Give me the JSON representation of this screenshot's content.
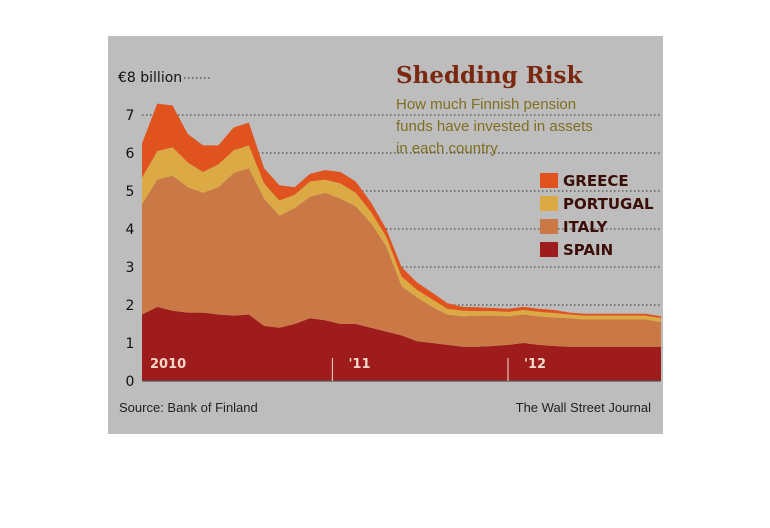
{
  "chart_data": {
    "type": "area",
    "stacked": true,
    "title": "Shedding Risk",
    "subtitle_lines": [
      "How much Finnish pension",
      "funds have invested in assets",
      "in each country"
    ],
    "unit_label": "€8 billion",
    "y_ticks": [
      "0",
      "1",
      "2",
      "3",
      "4",
      "5",
      "6",
      "7"
    ],
    "x_ticks": [
      "2010",
      "'11",
      "'12"
    ],
    "ylim": [
      0,
      8
    ],
    "grid": "dotted horizontal",
    "legend_position": "right",
    "x": [
      0,
      1,
      2,
      3,
      4,
      5,
      6,
      7,
      8,
      9,
      10,
      11,
      12,
      13,
      14,
      15,
      16,
      17,
      18,
      19,
      20,
      21,
      22,
      23,
      24,
      25,
      26,
      27,
      28,
      29,
      30,
      31,
      32,
      33,
      34
    ],
    "series": [
      {
        "name": "SPAIN",
        "color": "#9e1c1c",
        "values": [
          1.75,
          1.95,
          1.85,
          1.8,
          1.8,
          1.75,
          1.72,
          1.75,
          1.45,
          1.4,
          1.5,
          1.65,
          1.6,
          1.5,
          1.5,
          1.4,
          1.3,
          1.2,
          1.05,
          1.0,
          0.95,
          0.9,
          0.9,
          0.92,
          0.95,
          1.0,
          0.95,
          0.92,
          0.9,
          0.9,
          0.9,
          0.9,
          0.9,
          0.9,
          0.9
        ]
      },
      {
        "name": "ITALY",
        "color": "#c97846",
        "values": [
          2.9,
          3.35,
          3.55,
          3.3,
          3.15,
          3.35,
          3.75,
          3.85,
          3.35,
          2.95,
          3.05,
          3.2,
          3.35,
          3.3,
          3.1,
          2.75,
          2.25,
          1.3,
          1.15,
          0.95,
          0.8,
          0.8,
          0.82,
          0.8,
          0.75,
          0.75,
          0.75,
          0.75,
          0.75,
          0.72,
          0.72,
          0.72,
          0.72,
          0.72,
          0.65
        ]
      },
      {
        "name": "PORTUGAL",
        "color": "#dcaa45",
        "values": [
          0.7,
          0.75,
          0.75,
          0.65,
          0.55,
          0.6,
          0.6,
          0.6,
          0.4,
          0.4,
          0.35,
          0.4,
          0.35,
          0.4,
          0.35,
          0.3,
          0.25,
          0.25,
          0.2,
          0.2,
          0.15,
          0.15,
          0.12,
          0.12,
          0.12,
          0.12,
          0.12,
          0.12,
          0.1,
          0.1,
          0.1,
          0.1,
          0.1,
          0.1,
          0.1
        ]
      },
      {
        "name": "GREECE",
        "color": "#e0521e",
        "values": [
          0.9,
          1.25,
          1.1,
          0.75,
          0.7,
          0.5,
          0.6,
          0.6,
          0.4,
          0.4,
          0.2,
          0.2,
          0.25,
          0.3,
          0.3,
          0.25,
          0.2,
          0.25,
          0.2,
          0.18,
          0.15,
          0.1,
          0.1,
          0.08,
          0.08,
          0.08,
          0.08,
          0.08,
          0.05,
          0.05,
          0.05,
          0.05,
          0.05,
          0.05,
          0.05
        ]
      }
    ]
  },
  "footer": {
    "source": "Source: Bank of Finland",
    "publisher": "The Wall Street Journal"
  },
  "colors": {
    "panel": "#bdbdbd",
    "title": "#7a2810",
    "subtitle": "#7f6f22",
    "baseline": "#555555"
  }
}
